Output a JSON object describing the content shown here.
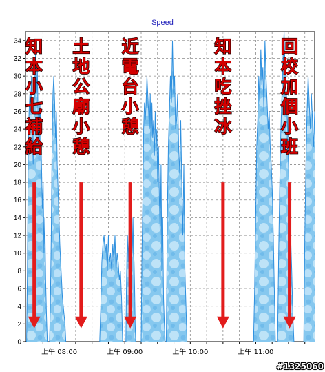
{
  "chart_data": {
    "type": "area",
    "title": "Speed",
    "xlabel": "",
    "ylabel": "",
    "ylim": [
      0,
      35
    ],
    "yticks": [
      0,
      2,
      4,
      6,
      8,
      10,
      12,
      14,
      16,
      18,
      20,
      22,
      24,
      26,
      28,
      30,
      32,
      34
    ],
    "xlim": [
      "07:29",
      "11:54"
    ],
    "xticks": [
      {
        "time": "07:45",
        "label": ""
      },
      {
        "time": "08:00",
        "label": "上午 08:00"
      },
      {
        "time": "08:15",
        "label": ""
      },
      {
        "time": "08:30",
        "label": ""
      },
      {
        "time": "08:45",
        "label": ""
      },
      {
        "time": "09:00",
        "label": "上午 09:00"
      },
      {
        "time": "09:15",
        "label": ""
      },
      {
        "time": "09:30",
        "label": ""
      },
      {
        "time": "09:45",
        "label": ""
      },
      {
        "time": "10:00",
        "label": "上午 10:00"
      },
      {
        "time": "10:15",
        "label": ""
      },
      {
        "time": "10:30",
        "label": ""
      },
      {
        "time": "10:45",
        "label": ""
      },
      {
        "time": "11:00",
        "label": "上午 11:00"
      },
      {
        "time": "11:15",
        "label": ""
      },
      {
        "time": "11:30",
        "label": ""
      },
      {
        "time": "11:45",
        "label": ""
      }
    ],
    "grid": true,
    "fill_color": "#7fc4ee",
    "line_color": "#2e8fde",
    "series": [
      {
        "name": "",
        "segments": [
          {
            "start": "07:30",
            "end": "07:49",
            "values": [
              0,
              8,
              22,
              26,
              28,
              27,
              30,
              24,
              20,
              26,
              29,
              33,
              28,
              31,
              25,
              22,
              27,
              24,
              20,
              15,
              18,
              10,
              14,
              7,
              3,
              0
            ]
          },
          {
            "start": "07:51",
            "end": "08:06",
            "values": [
              0,
              4,
              12,
              22,
              28,
              30,
              27,
              23,
              26,
              20,
              17,
              14,
              11,
              9,
              7,
              5,
              4,
              3,
              2,
              0
            ]
          },
          {
            "start": "08:37",
            "end": "08:58",
            "values": [
              0,
              4,
              9,
              11,
              12,
              10,
              11,
              8,
              12,
              9,
              10,
              8,
              11,
              9,
              12,
              8,
              10,
              9,
              7,
              8,
              5,
              0
            ]
          },
          {
            "start": "09:01",
            "end": "09:10",
            "values": [
              0,
              6,
              10,
              12,
              9,
              11,
              13,
              10,
              8,
              12,
              9,
              10,
              11,
              14,
              10,
              9,
              6,
              2,
              0
            ]
          },
          {
            "start": "09:15",
            "end": "09:37",
            "values": [
              0,
              10,
              16,
              24,
              27,
              25,
              27,
              30,
              28,
              26,
              24,
              28,
              22,
              27,
              23,
              25,
              21,
              26,
              22,
              24,
              18,
              22,
              16,
              12,
              20,
              8,
              14,
              5,
              2,
              0
            ]
          },
          {
            "start": "09:38",
            "end": "09:57",
            "values": [
              0,
              14,
              22,
              26,
              30,
              27,
              34,
              28,
              30,
              24,
              25,
              28,
              22,
              19,
              25,
              18,
              12,
              20,
              8,
              4,
              0
            ]
          },
          {
            "start": "10:58",
            "end": "11:18",
            "values": [
              0,
              6,
              14,
              22,
              25,
              30,
              27,
              33,
              29,
              31,
              26,
              34,
              30,
              27,
              24,
              26,
              22,
              20,
              17,
              12,
              6,
              0
            ]
          },
          {
            "start": "11:20",
            "end": "11:35",
            "values": [
              0,
              10,
              18,
              24,
              28,
              32,
              35,
              30,
              28,
              25,
              20,
              15,
              12,
              8,
              3,
              0
            ]
          },
          {
            "start": "11:44",
            "end": "11:54",
            "values": [
              0,
              12,
              20,
              26,
              30,
              27,
              24,
              28,
              25,
              22,
              26
            ]
          }
        ]
      }
    ],
    "annotations": [
      {
        "text": "知本小七補給",
        "at_time": "07:37",
        "arrow_to_y": 1.5
      },
      {
        "text": "土地公廟小憩",
        "at_time": "08:20",
        "arrow_to_y": 1.5
      },
      {
        "text": "近電台小憩",
        "at_time": "09:05",
        "arrow_to_y": 1.5
      },
      {
        "text": "知本吃挫冰",
        "at_time": "10:30",
        "arrow_to_y": 1.5
      },
      {
        "text": "回校加個小班",
        "at_time": "11:31",
        "arrow_to_y": 1.5
      }
    ],
    "annotation_color": "#d40000",
    "arrow_color": "#e21c1c"
  },
  "watermark": "#1325060"
}
